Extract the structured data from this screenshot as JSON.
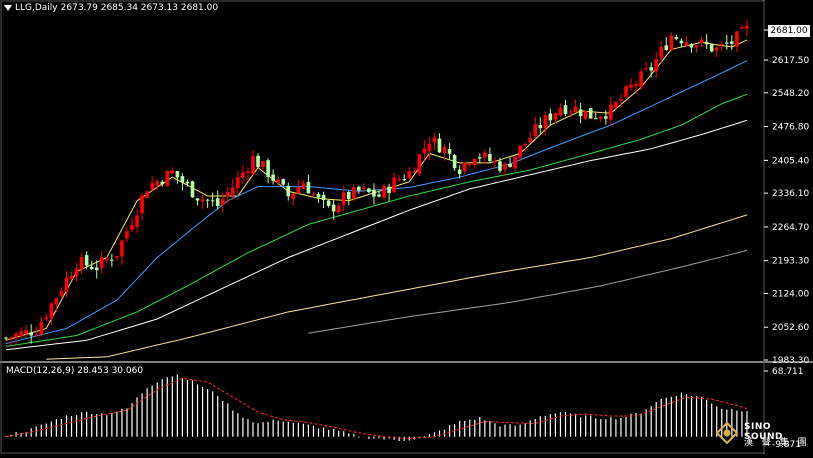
{
  "header": {
    "symbol": "LLG,Daily",
    "ohlc": "2673.79 2685.34 2673.13 2681.00"
  },
  "macd_header": {
    "label": "MACD(12,26,9) 28.453 30.060"
  },
  "last_price_label": "2681.00",
  "watermark": {
    "line1": "SINO SOUND",
    "line2": "漢 聲 集 團"
  },
  "colors": {
    "background": "#000000",
    "up_candle": "#ff0000",
    "down_candle": "#b4ffa0",
    "ma5": "#f5e663",
    "ma20": "#3a9bff",
    "ma40": "#2dd84a",
    "ma60": "#ffffff",
    "ma120": "#f7e3a0",
    "ma200": "#a0a0a0",
    "macd_hist": "#ffffff",
    "macd_signal": "#ff2a2a",
    "axis": "#ffffff"
  },
  "chart_data": [
    {
      "type": "candlestick",
      "title": "LLG,Daily",
      "y_ticks": [
        "2681.00",
        "2617.50",
        "2548.20",
        "2476.80",
        "2405.40",
        "2336.10",
        "2264.70",
        "2193.30",
        "2124.00",
        "2052.60",
        "1983.30"
      ],
      "ylim": [
        1983.3,
        2681.0
      ],
      "last_close": 2681.0,
      "series": [
        {
          "name": "price",
          "anchors": [
            [
              0,
              2030
            ],
            [
              6,
              2048
            ],
            [
              14,
              2190
            ],
            [
              18,
              2180
            ],
            [
              22,
              2210
            ],
            [
              28,
              2350
            ],
            [
              33,
              2380
            ],
            [
              38,
              2330
            ],
            [
              42,
              2310
            ],
            [
              45,
              2350
            ],
            [
              49,
              2410
            ],
            [
              52,
              2380
            ],
            [
              56,
              2330
            ],
            [
              59,
              2360
            ],
            [
              62,
              2320
            ],
            [
              64,
              2300
            ],
            [
              67,
              2325
            ],
            [
              70,
              2340
            ],
            [
              74,
              2330
            ],
            [
              77,
              2360
            ],
            [
              80,
              2380
            ],
            [
              84,
              2450
            ],
            [
              87,
              2430
            ],
            [
              90,
              2390
            ],
            [
              93,
              2420
            ],
            [
              96,
              2405
            ],
            [
              99,
              2390
            ],
            [
              102,
              2430
            ],
            [
              106,
              2480
            ],
            [
              110,
              2520
            ],
            [
              113,
              2515
            ],
            [
              116,
              2500
            ],
            [
              120,
              2510
            ],
            [
              124,
              2560
            ],
            [
              128,
              2600
            ],
            [
              132,
              2670
            ],
            [
              135,
              2660
            ],
            [
              138,
              2650
            ],
            [
              141,
              2640
            ],
            [
              144,
              2655
            ],
            [
              147,
              2681
            ]
          ]
        },
        {
          "name": "ma5",
          "anchors": [
            [
              0,
              2025
            ],
            [
              8,
              2050
            ],
            [
              14,
              2170
            ],
            [
              20,
              2200
            ],
            [
              26,
              2320
            ],
            [
              33,
              2370
            ],
            [
              40,
              2330
            ],
            [
              46,
              2330
            ],
            [
              50,
              2390
            ],
            [
              56,
              2340
            ],
            [
              62,
              2325
            ],
            [
              68,
              2320
            ],
            [
              74,
              2340
            ],
            [
              80,
              2360
            ],
            [
              84,
              2420
            ],
            [
              90,
              2400
            ],
            [
              96,
              2400
            ],
            [
              102,
              2420
            ],
            [
              108,
              2480
            ],
            [
              114,
              2510
            ],
            [
              120,
              2505
            ],
            [
              126,
              2560
            ],
            [
              132,
              2640
            ],
            [
              138,
              2655
            ],
            [
              144,
              2645
            ],
            [
              147,
              2660
            ]
          ]
        },
        {
          "name": "ma20",
          "anchors": [
            [
              0,
              2018
            ],
            [
              12,
              2050
            ],
            [
              22,
              2110
            ],
            [
              30,
              2200
            ],
            [
              38,
              2270
            ],
            [
              44,
              2320
            ],
            [
              50,
              2350
            ],
            [
              60,
              2350
            ],
            [
              70,
              2340
            ],
            [
              80,
              2348
            ],
            [
              90,
              2370
            ],
            [
              100,
              2398
            ],
            [
              110,
              2440
            ],
            [
              120,
              2480
            ],
            [
              130,
              2530
            ],
            [
              140,
              2580
            ],
            [
              147,
              2616
            ]
          ]
        },
        {
          "name": "ma40",
          "anchors": [
            [
              0,
              2012
            ],
            [
              14,
              2035
            ],
            [
              26,
              2085
            ],
            [
              36,
              2140
            ],
            [
              48,
              2210
            ],
            [
              60,
              2270
            ],
            [
              70,
              2300
            ],
            [
              80,
              2330
            ],
            [
              92,
              2360
            ],
            [
              104,
              2385
            ],
            [
              116,
              2420
            ],
            [
              126,
              2450
            ],
            [
              134,
              2480
            ],
            [
              142,
              2525
            ],
            [
              147,
              2545
            ]
          ]
        },
        {
          "name": "ma60",
          "anchors": [
            [
              0,
              2005
            ],
            [
              16,
              2025
            ],
            [
              30,
              2070
            ],
            [
              44,
              2140
            ],
            [
              56,
              2200
            ],
            [
              68,
              2250
            ],
            [
              80,
              2300
            ],
            [
              92,
              2345
            ],
            [
              104,
              2375
            ],
            [
              116,
              2405
            ],
            [
              128,
              2430
            ],
            [
              138,
              2460
            ],
            [
              147,
              2490
            ]
          ]
        },
        {
          "name": "ma120",
          "anchors": [
            [
              8,
              1985
            ],
            [
              20,
              1990
            ],
            [
              36,
              2030
            ],
            [
              56,
              2085
            ],
            [
              76,
              2125
            ],
            [
              96,
              2165
            ],
            [
              116,
              2200
            ],
            [
              132,
              2240
            ],
            [
              147,
              2290
            ]
          ]
        },
        {
          "name": "ma200",
          "anchors": [
            [
              60,
              2040
            ],
            [
              80,
              2075
            ],
            [
              100,
              2105
            ],
            [
              118,
              2140
            ],
            [
              134,
              2180
            ],
            [
              147,
              2215
            ]
          ]
        }
      ]
    },
    {
      "type": "bar",
      "title": "MACD(12,26,9)",
      "values_label": "28.453 30.060",
      "y_ticks": [
        "68.711",
        "-9.871"
      ],
      "ylim": [
        -9.871,
        68.711
      ],
      "series": [
        {
          "name": "histogram",
          "anchors": [
            [
              0,
              2
            ],
            [
              4,
              6
            ],
            [
              8,
              14
            ],
            [
              12,
              22
            ],
            [
              16,
              26
            ],
            [
              20,
              24
            ],
            [
              24,
              30
            ],
            [
              28,
              52
            ],
            [
              31,
              62
            ],
            [
              34,
              66
            ],
            [
              38,
              56
            ],
            [
              42,
              44
            ],
            [
              46,
              24
            ],
            [
              50,
              14
            ],
            [
              54,
              18
            ],
            [
              58,
              14
            ],
            [
              62,
              10
            ],
            [
              66,
              6
            ],
            [
              70,
              0
            ],
            [
              74,
              -2
            ],
            [
              78,
              -4
            ],
            [
              82,
              -2
            ],
            [
              86,
              6
            ],
            [
              90,
              16
            ],
            [
              94,
              20
            ],
            [
              98,
              12
            ],
            [
              102,
              12
            ],
            [
              106,
              22
            ],
            [
              110,
              26
            ],
            [
              114,
              22
            ],
            [
              118,
              20
            ],
            [
              122,
              20
            ],
            [
              126,
              26
            ],
            [
              130,
              40
            ],
            [
              134,
              46
            ],
            [
              138,
              42
            ],
            [
              142,
              30
            ],
            [
              147,
              28
            ]
          ]
        },
        {
          "name": "signal",
          "anchors": [
            [
              0,
              0
            ],
            [
              6,
              6
            ],
            [
              12,
              14
            ],
            [
              18,
              22
            ],
            [
              24,
              28
            ],
            [
              30,
              50
            ],
            [
              35,
              62
            ],
            [
              40,
              58
            ],
            [
              45,
              42
            ],
            [
              50,
              26
            ],
            [
              55,
              18
            ],
            [
              60,
              15
            ],
            [
              65,
              10
            ],
            [
              70,
              4
            ],
            [
              75,
              0
            ],
            [
              80,
              -2
            ],
            [
              85,
              0
            ],
            [
              90,
              8
            ],
            [
              95,
              16
            ],
            [
              100,
              15
            ],
            [
              105,
              14
            ],
            [
              110,
              22
            ],
            [
              115,
              24
            ],
            [
              120,
              22
            ],
            [
              125,
              22
            ],
            [
              130,
              32
            ],
            [
              135,
              42
            ],
            [
              140,
              40
            ],
            [
              145,
              33
            ],
            [
              147,
              30
            ]
          ]
        }
      ]
    }
  ]
}
